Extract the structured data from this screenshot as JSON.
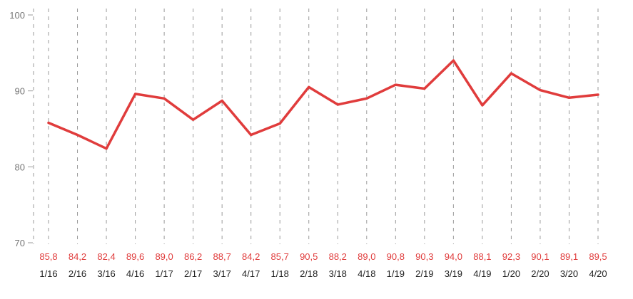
{
  "chart_data": {
    "type": "line",
    "title": "",
    "xlabel": "",
    "ylabel": "",
    "ylim": [
      70,
      100
    ],
    "yticks": [
      70,
      80,
      90,
      100
    ],
    "grid": "vertical-dashed",
    "line_color": "#e03c3c",
    "label_color": "#e03c3c",
    "categories": [
      "1/16",
      "2/16",
      "3/16",
      "4/16",
      "1/17",
      "2/17",
      "3/17",
      "4/17",
      "1/18",
      "2/18",
      "3/18",
      "4/18",
      "1/19",
      "2/19",
      "3/19",
      "4/19",
      "1/20",
      "2/20",
      "3/20",
      "4/20"
    ],
    "values": [
      85.8,
      84.2,
      82.4,
      89.6,
      89.0,
      86.2,
      88.7,
      84.2,
      85.7,
      90.5,
      88.2,
      89.0,
      90.8,
      90.3,
      94.0,
      88.1,
      92.3,
      90.1,
      89.1,
      89.5
    ],
    "value_labels": [
      "85,8",
      "84,2",
      "82,4",
      "89,6",
      "89,0",
      "86,2",
      "88,7",
      "84,2",
      "85,7",
      "90,5",
      "88,2",
      "89,0",
      "90,8",
      "90,3",
      "94,0",
      "88,1",
      "92,3",
      "90,1",
      "89,1",
      "89,5"
    ]
  }
}
